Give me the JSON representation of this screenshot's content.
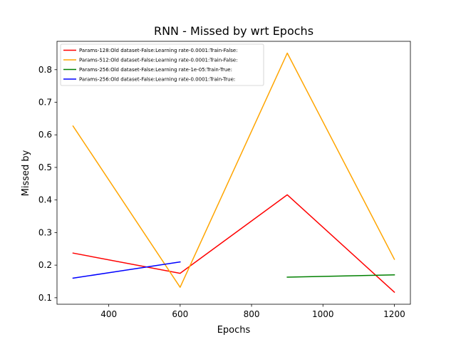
{
  "chart_data": {
    "type": "line",
    "title": "RNN - Missed by wrt Epochs",
    "xlabel": "Epochs",
    "ylabel": "Missed by",
    "xlim": [
      255,
      1245
    ],
    "ylim": [
      0.08,
      0.887
    ],
    "xticks": [
      400,
      600,
      800,
      1000,
      1200
    ],
    "yticks": [
      0.1,
      0.2,
      0.3,
      0.4,
      0.5,
      0.6,
      0.7,
      0.8
    ],
    "grid": false,
    "legend_position": "top-left",
    "series": [
      {
        "name": "Params-128:Old dataset-False:Learning rate-0.0001:Train-False:",
        "color": "#ff0000",
        "points": [
          [
            300,
            0.237
          ],
          [
            600,
            0.175
          ],
          [
            900,
            0.416
          ],
          [
            1200,
            0.117
          ]
        ]
      },
      {
        "name": "Params-512:Old dataset-False:Learning rate-0.0001:Train-False:",
        "color": "#ffa500",
        "points": [
          [
            300,
            0.627
          ],
          [
            600,
            0.132
          ],
          [
            900,
            0.851
          ],
          [
            1200,
            0.218
          ]
        ]
      },
      {
        "name": "Params-256:Old dataset-False:Learning rate-1e-05:Train-True:",
        "color": "#008000",
        "points": [
          [
            900,
            0.163
          ],
          [
            1200,
            0.17
          ]
        ]
      },
      {
        "name": "Params-256:Old dataset-False:Learning rate-0.0001:Train-True:",
        "color": "#0000ff",
        "points": [
          [
            300,
            0.16
          ],
          [
            600,
            0.21
          ]
        ]
      }
    ]
  }
}
